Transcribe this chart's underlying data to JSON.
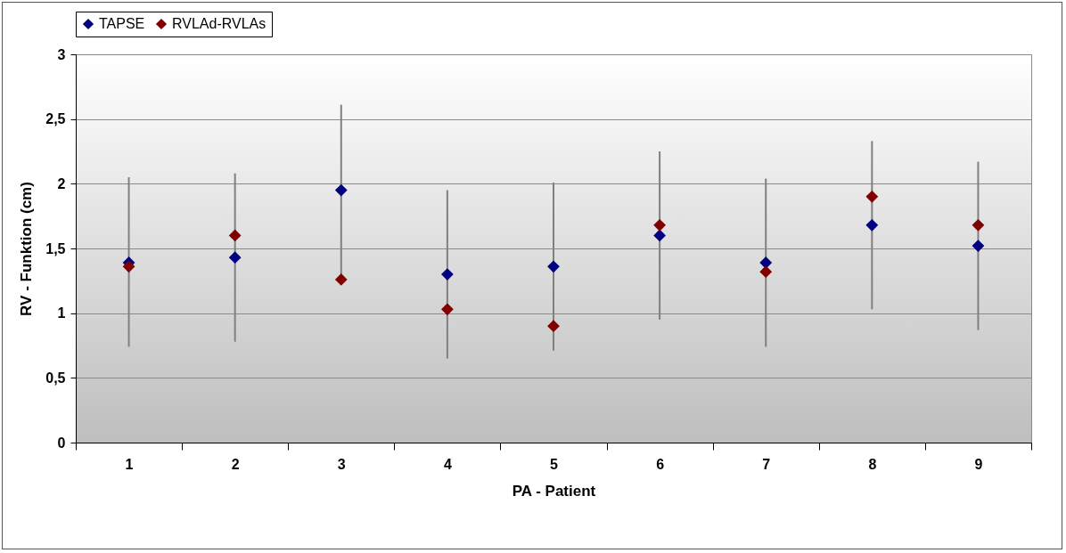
{
  "chart_data": {
    "type": "scatter",
    "xlabel": "PA - Patient",
    "ylabel": "RV - Funktion (cm)",
    "categories": [
      "1",
      "2",
      "3",
      "4",
      "5",
      "6",
      "7",
      "8",
      "9"
    ],
    "series": [
      {
        "name": "TAPSE",
        "color": "#000080",
        "values": [
          1.39,
          1.43,
          1.95,
          1.3,
          1.36,
          1.6,
          1.39,
          1.68,
          1.52
        ],
        "errors": [
          [
            0.74,
            2.05
          ],
          [
            0.78,
            2.08
          ],
          [
            1.26,
            2.61
          ],
          [
            0.65,
            1.95
          ],
          [
            0.71,
            2.01
          ],
          [
            0.95,
            2.25
          ],
          [
            0.74,
            2.04
          ],
          [
            1.03,
            2.33
          ],
          [
            0.87,
            2.17
          ]
        ]
      },
      {
        "name": "RVLAd-RVLAs",
        "color": "#800000",
        "values": [
          1.36,
          1.6,
          1.26,
          1.03,
          0.9,
          1.68,
          1.32,
          1.9,
          1.68
        ]
      }
    ],
    "ylim": [
      0,
      3
    ],
    "yticks": [
      {
        "value": 0,
        "label": "0"
      },
      {
        "value": 0.5,
        "label": "0,5"
      },
      {
        "value": 1,
        "label": "1"
      },
      {
        "value": 1.5,
        "label": "1,5"
      },
      {
        "value": 2,
        "label": "2"
      },
      {
        "value": 2.5,
        "label": "2,5"
      },
      {
        "value": 3,
        "label": "3"
      }
    ],
    "grid": "y",
    "legend": "top",
    "marker": "diamond"
  }
}
